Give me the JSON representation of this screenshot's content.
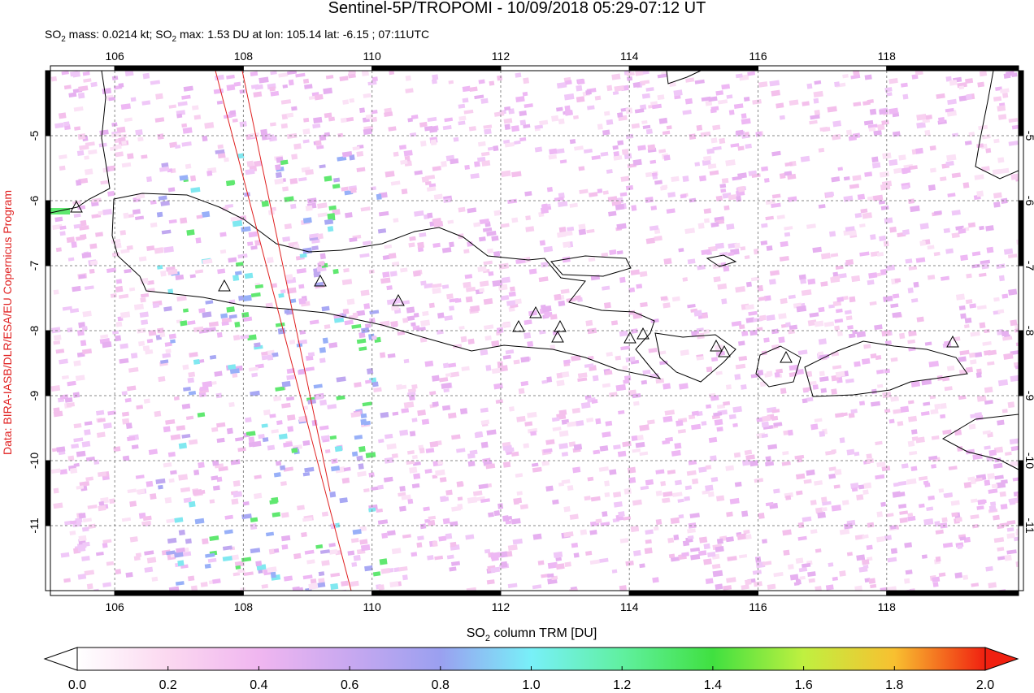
{
  "chart_data": {
    "type": "map",
    "title": "Sentinel-5P/TROPOMI - 10/09/2018 05:29-07:12 UT",
    "subtitle": [
      "SO",
      "2",
      " mass: 0.0214 kt; SO",
      "2",
      " max: 1.53 DU at lon: 105.14 lat: -6.15 ; 07:11UTC"
    ],
    "credit": "Data: BIRA-IASB/DLR/ESA/EU Copernicus Program",
    "xlim": [
      105,
      120.05
    ],
    "ylim": [
      -12,
      -4
    ],
    "xticks": [
      106,
      108,
      110,
      112,
      114,
      116,
      118
    ],
    "yticks": [
      -5,
      -6,
      -7,
      -8,
      -9,
      -10,
      -11
    ],
    "grid": true,
    "colorbar": {
      "label": [
        "SO",
        "2",
        " column TRM [DU]"
      ],
      "lim": [
        0,
        2
      ],
      "ticks": [
        {
          "value": 0,
          "label": "0.0"
        },
        0.2,
        0.4,
        0.6,
        0.8,
        {
          "value": 1,
          "label": "1.0"
        },
        1.2,
        1.4,
        1.6,
        1.8,
        {
          "value": 2,
          "label": "2.0"
        }
      ]
    }
  }
}
